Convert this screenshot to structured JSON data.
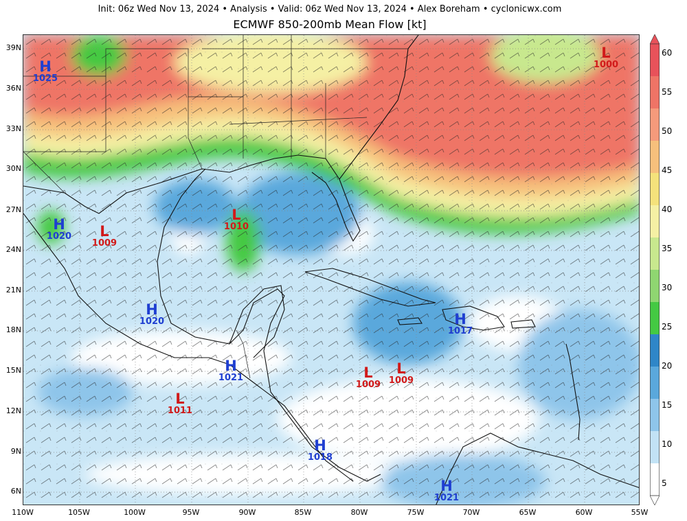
{
  "header": {
    "init_line": "Init: 06z Wed Nov 13, 2024 • Analysis • Valid: 06z Wed Nov 13, 2024 • Alex Boreham • cyclonicwx.com",
    "title": "ECMWF 850-200mb Mean Flow [kt]"
  },
  "axes": {
    "lat_labels": [
      "39N",
      "36N",
      "33N",
      "30N",
      "27N",
      "24N",
      "21N",
      "18N",
      "15N",
      "12N",
      "9N",
      "6N"
    ],
    "lon_labels": [
      "110W",
      "105W",
      "100W",
      "95W",
      "90W",
      "85W",
      "80W",
      "75W",
      "70W",
      "65W",
      "60W",
      "55W"
    ]
  },
  "colorbar": {
    "ticks": [
      "60",
      "55",
      "50",
      "45",
      "40",
      "35",
      "30",
      "25",
      "20",
      "15",
      "10",
      "5"
    ],
    "colors": [
      "#e8525a",
      "#ef7466",
      "#f59a7b",
      "#f6c07c",
      "#f4e27b",
      "#f5f0a4",
      "#c8e88e",
      "#8fd671",
      "#44c943",
      "#2f86c8",
      "#5aa8dc",
      "#8ec5ea",
      "#c2e2f5",
      "#ffffff"
    ]
  },
  "pressure_centers": [
    {
      "type": "H",
      "label": "H",
      "value": "1025"
    },
    {
      "type": "L",
      "label": "L",
      "value": "1000"
    },
    {
      "type": "H",
      "label": "H",
      "value": "1020"
    },
    {
      "type": "L",
      "label": "L",
      "value": "1009"
    },
    {
      "type": "L",
      "label": "L",
      "value": "1010"
    },
    {
      "type": "H",
      "label": "H",
      "value": "1020"
    },
    {
      "type": "H",
      "label": "H",
      "value": "1017"
    },
    {
      "type": "H",
      "label": "H",
      "value": "1021"
    },
    {
      "type": "L",
      "label": "L",
      "value": "1009"
    },
    {
      "type": "L",
      "label": "L",
      "value": "1009"
    },
    {
      "type": "L",
      "label": "L",
      "value": "1011"
    },
    {
      "type": "H",
      "label": "H",
      "value": "1018"
    },
    {
      "type": "H",
      "label": "H",
      "value": "1021"
    }
  ]
}
